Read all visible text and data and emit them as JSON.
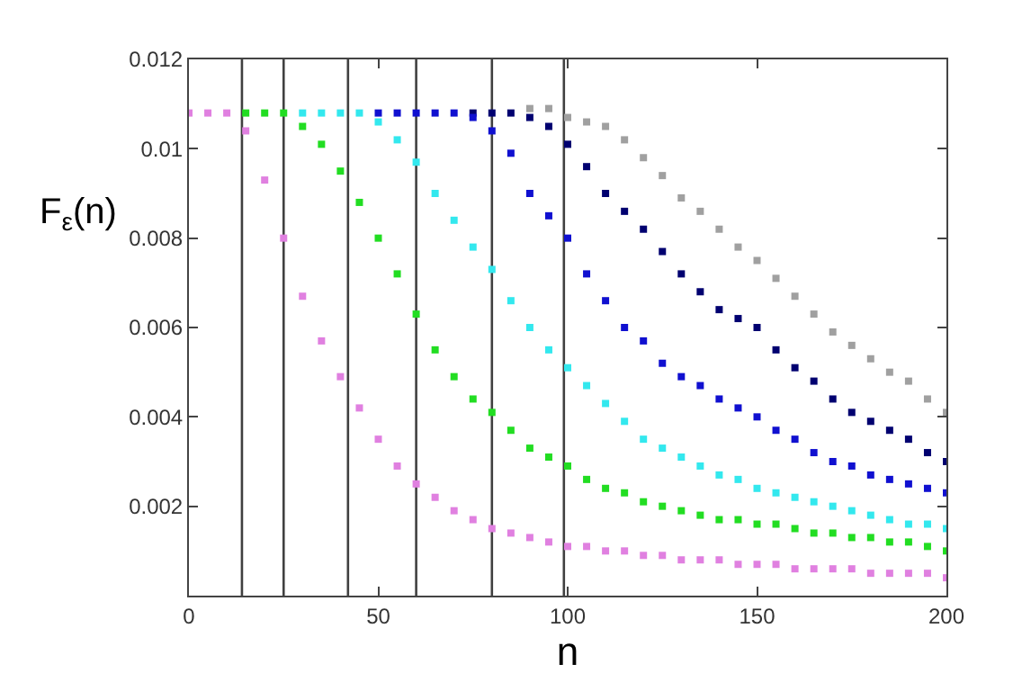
{
  "chart_data": {
    "type": "scatter",
    "xlabel": "n",
    "ylabel": "F$_{ε}$(n)",
    "xlim": [
      0,
      200
    ],
    "xticks": [
      0,
      50,
      100,
      150,
      200
    ],
    "ylim": [
      0,
      0.012
    ],
    "yticks": [
      0.002,
      0.004,
      0.006,
      0.008,
      0.01,
      0.012
    ],
    "marker": "square",
    "ref_lines": [
      {
        "axis": "x",
        "value": 14,
        "color": "#404040"
      },
      {
        "axis": "x",
        "value": 25,
        "color": "#404040"
      },
      {
        "axis": "x",
        "value": 42,
        "color": "#404040"
      },
      {
        "axis": "x",
        "value": 60,
        "color": "#404040"
      },
      {
        "axis": "x",
        "value": 80,
        "color": "#404040"
      },
      {
        "axis": "x",
        "value": 99,
        "color": "#404040"
      }
    ],
    "series": [
      {
        "color": "#a0a0a0",
        "x": [
          90,
          95,
          100,
          105,
          110,
          115,
          120,
          125,
          130,
          135,
          140,
          145,
          150,
          155,
          160,
          165,
          170,
          175,
          180,
          185,
          190,
          195,
          200
        ],
        "values": [
          0.0109,
          0.0109,
          0.0107,
          0.0106,
          0.0105,
          0.0102,
          0.0098,
          0.0094,
          0.0089,
          0.0086,
          0.0082,
          0.0078,
          0.0075,
          0.0071,
          0.0067,
          0.0063,
          0.0059,
          0.0056,
          0.0053,
          0.005,
          0.0048,
          0.0044,
          0.0041
        ]
      },
      {
        "color": "#000070",
        "x": [
          75,
          80,
          85,
          90,
          95,
          100,
          105,
          110,
          115,
          120,
          125,
          130,
          135,
          140,
          145,
          150,
          155,
          160,
          165,
          170,
          175,
          180,
          185,
          190,
          195,
          200
        ],
        "values": [
          0.0108,
          0.0108,
          0.0108,
          0.0107,
          0.0105,
          0.0101,
          0.0096,
          0.009,
          0.0086,
          0.0082,
          0.0077,
          0.0072,
          0.0068,
          0.0064,
          0.0062,
          0.006,
          0.0055,
          0.0051,
          0.0048,
          0.0044,
          0.0041,
          0.0039,
          0.0037,
          0.0035,
          0.0032,
          0.003
        ]
      },
      {
        "color": "#1010d0",
        "x": [
          50,
          55,
          60,
          65,
          70,
          75,
          80,
          85,
          90,
          95,
          100,
          105,
          110,
          115,
          120,
          125,
          130,
          135,
          140,
          145,
          150,
          155,
          160,
          165,
          170,
          175,
          180,
          185,
          190,
          195,
          200
        ],
        "values": [
          0.0108,
          0.0108,
          0.0108,
          0.0108,
          0.0108,
          0.0107,
          0.0104,
          0.0099,
          0.009,
          0.0085,
          0.008,
          0.0072,
          0.0066,
          0.006,
          0.0057,
          0.0052,
          0.0049,
          0.0047,
          0.0044,
          0.0042,
          0.004,
          0.0037,
          0.0035,
          0.0032,
          0.003,
          0.0029,
          0.0027,
          0.0026,
          0.0025,
          0.0024,
          0.0023
        ]
      },
      {
        "color": "#33e8ee",
        "x": [
          30,
          35,
          40,
          45,
          50,
          55,
          60,
          65,
          70,
          75,
          80,
          85,
          90,
          95,
          100,
          105,
          110,
          115,
          120,
          125,
          130,
          135,
          140,
          145,
          150,
          155,
          160,
          165,
          170,
          175,
          180,
          185,
          190,
          195,
          200
        ],
        "values": [
          0.0108,
          0.0108,
          0.0108,
          0.0108,
          0.0106,
          0.0102,
          0.0097,
          0.009,
          0.0084,
          0.0078,
          0.0073,
          0.0066,
          0.006,
          0.0055,
          0.0051,
          0.0047,
          0.0043,
          0.0039,
          0.0035,
          0.0033,
          0.0031,
          0.0029,
          0.0027,
          0.0026,
          0.0024,
          0.0023,
          0.0022,
          0.0021,
          0.002,
          0.0019,
          0.0018,
          0.0017,
          0.0016,
          0.0016,
          0.0015
        ]
      },
      {
        "color": "#22dd22",
        "x": [
          15,
          20,
          25,
          30,
          35,
          40,
          45,
          50,
          55,
          60,
          65,
          70,
          75,
          80,
          85,
          90,
          95,
          100,
          105,
          110,
          115,
          120,
          125,
          130,
          135,
          140,
          145,
          150,
          155,
          160,
          165,
          170,
          175,
          180,
          185,
          190,
          195,
          200
        ],
        "values": [
          0.0108,
          0.0108,
          0.0108,
          0.0105,
          0.0101,
          0.0095,
          0.0088,
          0.008,
          0.0072,
          0.0063,
          0.0055,
          0.0049,
          0.0044,
          0.0041,
          0.0037,
          0.0033,
          0.0031,
          0.0029,
          0.0026,
          0.0024,
          0.0023,
          0.0021,
          0.002,
          0.0019,
          0.0018,
          0.0017,
          0.0017,
          0.0016,
          0.0016,
          0.0015,
          0.0014,
          0.0014,
          0.0013,
          0.0013,
          0.0012,
          0.0012,
          0.0011,
          0.001
        ]
      },
      {
        "color": "#e080e0",
        "x": [
          0,
          5,
          10,
          15,
          20,
          25,
          30,
          35,
          40,
          45,
          50,
          55,
          60,
          65,
          70,
          75,
          80,
          85,
          90,
          95,
          100,
          105,
          110,
          115,
          120,
          125,
          130,
          135,
          140,
          145,
          150,
          155,
          160,
          165,
          170,
          175,
          180,
          185,
          190,
          195,
          200
        ],
        "values": [
          0.0108,
          0.0108,
          0.0108,
          0.0104,
          0.0093,
          0.008,
          0.0067,
          0.0057,
          0.0049,
          0.0042,
          0.0035,
          0.0029,
          0.0025,
          0.0022,
          0.0019,
          0.0017,
          0.0015,
          0.0014,
          0.0013,
          0.0012,
          0.0011,
          0.0011,
          0.001,
          0.001,
          0.0009,
          0.0009,
          0.0008,
          0.0008,
          0.0008,
          0.0007,
          0.0007,
          0.0007,
          0.0006,
          0.0006,
          0.0006,
          0.0006,
          0.0005,
          0.0005,
          0.0005,
          0.0005,
          0.0004
        ]
      }
    ]
  }
}
